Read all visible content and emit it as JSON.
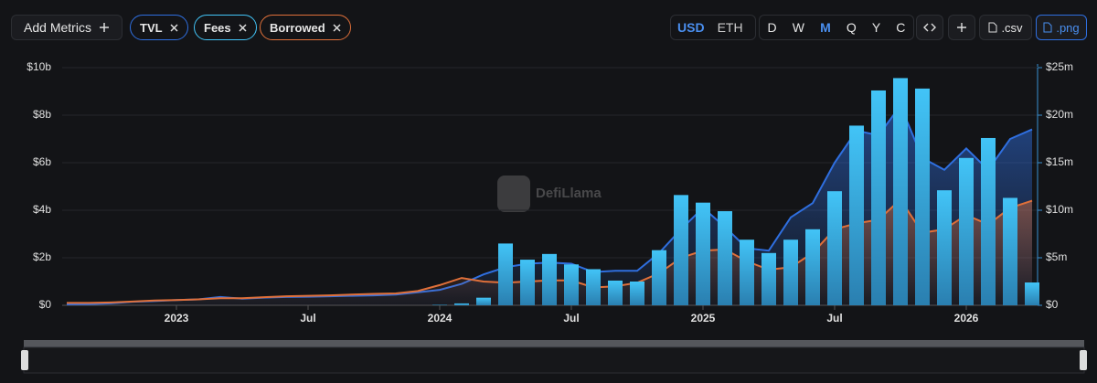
{
  "toolbar": {
    "add_metrics": "Add Metrics",
    "currencies": [
      "USD",
      "ETH"
    ],
    "periods": [
      "D",
      "W",
      "M",
      "Q",
      "Y",
      "C"
    ],
    "csv": ".csv",
    "png": ".png"
  },
  "watermark": "DefiLlama",
  "chart_data": {
    "type": "combo",
    "x": [
      "2022-08",
      "2022-09",
      "2022-10",
      "2022-11",
      "2022-12",
      "2023-01",
      "2023-02",
      "2023-03",
      "2023-04",
      "2023-05",
      "2023-06",
      "2023-07",
      "2023-08",
      "2023-09",
      "2023-10",
      "2023-11",
      "2023-12",
      "2024-01",
      "2024-02",
      "2024-03",
      "2024-04",
      "2024-05",
      "2024-06",
      "2024-07",
      "2024-08",
      "2024-09",
      "2024-10",
      "2024-11",
      "2024-12",
      "2025-01",
      "2025-02",
      "2025-03",
      "2025-04",
      "2025-05",
      "2025-06",
      "2025-07",
      "2025-08",
      "2025-09",
      "2025-10",
      "2025-11",
      "2025-12",
      "2026-01",
      "2026-02",
      "2026-03",
      "2026-04"
    ],
    "series": [
      {
        "name": "TVL",
        "type": "line",
        "color": "#2f6fe0",
        "axis": "y",
        "values": [
          0.04,
          0.05,
          0.08,
          0.15,
          0.18,
          0.22,
          0.25,
          0.35,
          0.28,
          0.32,
          0.35,
          0.36,
          0.38,
          0.4,
          0.42,
          0.45,
          0.55,
          0.65,
          0.9,
          1.3,
          1.6,
          1.75,
          1.8,
          1.75,
          1.4,
          1.45,
          1.45,
          2.2,
          3.2,
          4.1,
          3.3,
          2.4,
          2.3,
          3.7,
          4.3,
          6.0,
          7.35,
          7.15,
          8.4,
          6.2,
          5.7,
          6.6,
          5.7,
          7.0,
          7.4
        ]
      },
      {
        "name": "Fees",
        "type": "bar",
        "color": "#42c4f7",
        "axis": "y2",
        "values": [
          null,
          null,
          null,
          null,
          null,
          null,
          null,
          null,
          null,
          null,
          null,
          null,
          null,
          null,
          null,
          null,
          null,
          0.05,
          0.2,
          0.8,
          6.5,
          4.8,
          5.4,
          4.3,
          3.8,
          2.6,
          2.5,
          5.8,
          11.6,
          10.8,
          9.9,
          6.9,
          5.5,
          6.9,
          8.0,
          12.0,
          18.9,
          22.6,
          23.9,
          22.8,
          12.1,
          15.5,
          17.6,
          11.3,
          2.4
        ]
      },
      {
        "name": "Borrowed",
        "type": "line",
        "color": "#e0703a",
        "axis": "y",
        "values": [
          0.1,
          0.1,
          0.12,
          0.16,
          0.2,
          0.22,
          0.25,
          0.3,
          0.3,
          0.34,
          0.38,
          0.4,
          0.42,
          0.45,
          0.48,
          0.5,
          0.6,
          0.85,
          1.15,
          1.0,
          0.95,
          1.0,
          1.05,
          1.05,
          0.75,
          0.8,
          0.95,
          1.35,
          2.0,
          2.3,
          2.35,
          1.85,
          1.5,
          1.6,
          2.2,
          3.2,
          3.45,
          3.6,
          4.45,
          3.05,
          3.2,
          3.8,
          3.4,
          4.1,
          4.4
        ]
      }
    ],
    "xticks": [
      {
        "value": "2023-01",
        "label": "2023"
      },
      {
        "value": "2023-07",
        "label": "Jul"
      },
      {
        "value": "2024-01",
        "label": "2024"
      },
      {
        "value": "2024-07",
        "label": "Jul"
      },
      {
        "value": "2025-01",
        "label": "2025"
      },
      {
        "value": "2025-07",
        "label": "Jul"
      },
      {
        "value": "2026-01",
        "label": "2026"
      }
    ],
    "ylim": [
      0,
      10
    ],
    "yticks": [
      {
        "value": 0,
        "label": "$0"
      },
      {
        "value": 2,
        "label": "$2b"
      },
      {
        "value": 4,
        "label": "$4b"
      },
      {
        "value": 6,
        "label": "$6b"
      },
      {
        "value": 8,
        "label": "$8b"
      },
      {
        "value": 10,
        "label": "$10b"
      }
    ],
    "y2lim": [
      0,
      25
    ],
    "y2ticks": [
      {
        "value": 0,
        "label": "$0"
      },
      {
        "value": 5,
        "label": "$5m"
      },
      {
        "value": 10,
        "label": "$10m"
      },
      {
        "value": 15,
        "label": "$15m"
      },
      {
        "value": 20,
        "label": "$20m"
      },
      {
        "value": 25,
        "label": "$25m"
      }
    ],
    "grid": true
  }
}
